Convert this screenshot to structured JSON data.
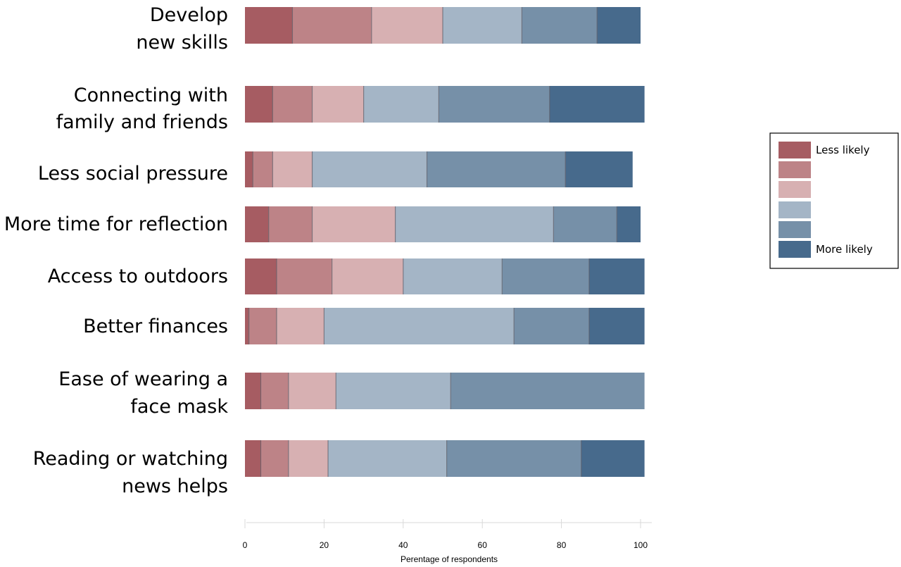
{
  "chart_data": {
    "type": "bar",
    "orientation": "horizontal",
    "stacked": true,
    "xlabel": "Perentage of respondents",
    "ylabel": "",
    "xlim": [
      0,
      100
    ],
    "xticks": [
      0,
      20,
      40,
      60,
      80,
      100
    ],
    "grid": false,
    "legend_position": "right",
    "categories": [
      [
        "Develop",
        "new skills"
      ],
      [
        "Connecting with",
        "family and friends"
      ],
      [
        "Less social pressure"
      ],
      [
        "More time for reflection"
      ],
      [
        "Access to outdoors"
      ],
      [
        "Better finances"
      ],
      [
        "Ease of wearing a",
        "face mask"
      ],
      [
        "Reading or watching",
        "news helps"
      ]
    ],
    "series": [
      {
        "name": "Less likely",
        "color": "#a65c62",
        "values": [
          12,
          7,
          2,
          6,
          8,
          1,
          4,
          4
        ]
      },
      {
        "name": "",
        "color": "#bd8387",
        "values": [
          20,
          10,
          5,
          11,
          14,
          7,
          7,
          7
        ]
      },
      {
        "name": "",
        "color": "#d7b0b2",
        "values": [
          18,
          13,
          10,
          21,
          18,
          12,
          12,
          10
        ]
      },
      {
        "name": "",
        "color": "#a4b5c6",
        "values": [
          20,
          19,
          29,
          40,
          25,
          48,
          29,
          30
        ]
      },
      {
        "name": "",
        "color": "#7690a8",
        "values": [
          19,
          28,
          35,
          16,
          22,
          19,
          49,
          34
        ]
      },
      {
        "name": "More likely",
        "color": "#476a8c",
        "values": [
          11,
          24,
          17,
          6,
          14,
          14,
          0,
          16
        ]
      }
    ]
  }
}
